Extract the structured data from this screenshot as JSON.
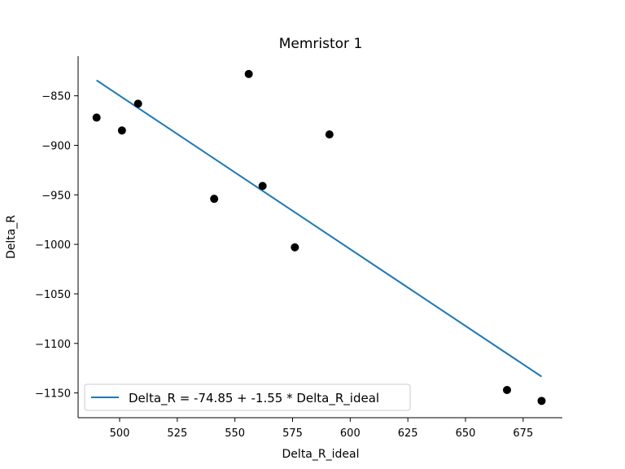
{
  "chart_data": {
    "type": "scatter",
    "title": "Memristor 1",
    "xlabel": "Delta_R_ideal",
    "ylabel": "Delta_R",
    "xlim": [
      482,
      692
    ],
    "ylim": [
      -1175,
      -810
    ],
    "xticks": [
      500,
      525,
      550,
      575,
      600,
      625,
      650,
      675
    ],
    "yticks": [
      -850,
      -900,
      -950,
      -1000,
      -1050,
      -1100,
      -1150
    ],
    "xtick_labels": [
      "500",
      "525",
      "550",
      "575",
      "600",
      "625",
      "650",
      "675"
    ],
    "ytick_labels": [
      "−850",
      "−900",
      "−950",
      "−1000",
      "−1050",
      "−1100",
      "−1150"
    ],
    "grid": false,
    "legend_position": "lower-left",
    "points": [
      {
        "x": 490,
        "y": -872
      },
      {
        "x": 501,
        "y": -885
      },
      {
        "x": 508,
        "y": -858
      },
      {
        "x": 541,
        "y": -954
      },
      {
        "x": 556,
        "y": -828
      },
      {
        "x": 562,
        "y": -941
      },
      {
        "x": 576,
        "y": -1003
      },
      {
        "x": 591,
        "y": -889
      },
      {
        "x": 668,
        "y": -1147
      },
      {
        "x": 683,
        "y": -1158
      }
    ],
    "fit_line": {
      "label": "Delta_R = -74.85 + -1.55 * Delta_R_ideal",
      "intercept": -74.85,
      "slope": -1.55,
      "x_range": [
        490,
        683
      ],
      "color": "#1f77b4"
    },
    "point_color": "#000000"
  }
}
